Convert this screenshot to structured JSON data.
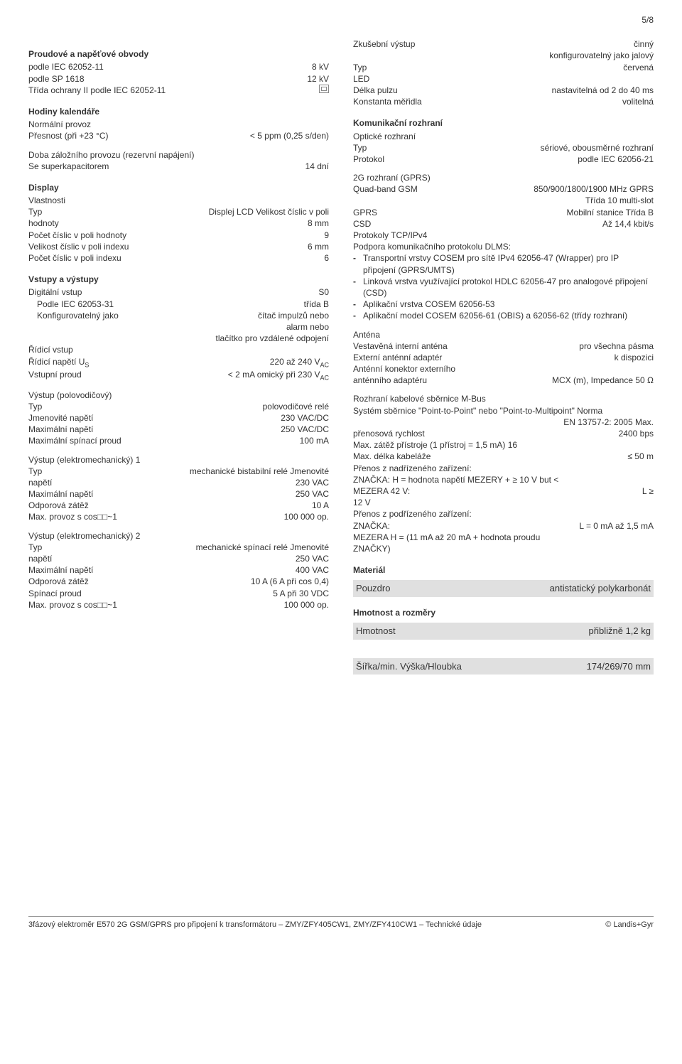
{
  "page_num": "5/8",
  "left": {
    "sect1_title": "Proudové a napěťové obvody",
    "r1": {
      "lab": "podle IEC 62052-11",
      "val": "8 kV"
    },
    "r2": {
      "lab": "podle SP 1618",
      "val": "12 kV"
    },
    "r3_lab": "Třída ochrany II podle IEC 62052-11",
    "sect2_title": "Hodiny kalendáře",
    "r4_lab": "Normální provoz",
    "r5": {
      "lab": "Přesnost (při +23 °C)",
      "val": "< 5 ppm (0,25 s/den)"
    },
    "r6_lab": "Doba záložního provozu (rezervní napájení)",
    "r7": {
      "lab": "Se superkapacitorem",
      "val": "14 dní"
    },
    "sect3_title": "Display",
    "r8_lab": "Vlastnosti",
    "r9": {
      "lab": "Typ",
      "val": "Displej LCD Velikost číslic v poli"
    },
    "r10": {
      "lab": "hodnoty",
      "val": "8 mm"
    },
    "r11": {
      "lab": "Počet číslic v poli hodnoty",
      "val": "9"
    },
    "r12": {
      "lab": "Velikost číslic v poli indexu",
      "val": "6 mm"
    },
    "r13": {
      "lab": "Počet číslic v poli indexu",
      "val": "6"
    },
    "sect4_title": "Vstupy a výstupy",
    "r14": {
      "lab": "Digitální vstup",
      "val": "S0"
    },
    "r15": {
      "lab": "Podle IEC 62053-31",
      "val": "třída B"
    },
    "r16": {
      "lab": "Konfigurovatelný jako",
      "val": "čítač impulzů nebo"
    },
    "r16b": "alarm nebo",
    "r16c": "tlačítko pro vzdálené odpojení",
    "r17_lab": "Řídicí vstup",
    "r18_lab": "Řídicí napětí U",
    "r18_sub": "S",
    "r18_val": "220 až 240 V",
    "r18_val_sub": "AC",
    "r19_lab": "Vstupní proud",
    "r19_val": "< 2 mA omický při 230 V",
    "r19_val_sub": "AC",
    "r20_lab": "Výstup (polovodičový)",
    "r21": {
      "lab": "Typ",
      "val": "polovodičové relé"
    },
    "r22": {
      "lab": "Jmenovité napětí",
      "val": "230 VAC/DC"
    },
    "r23": {
      "lab": "Maximální napětí",
      "val": "250 VAC/DC"
    },
    "r24": {
      "lab": "Maximální spínací proud",
      "val": "100 mA"
    },
    "r25_lab": "Výstup (elektromechanický) 1",
    "r26": {
      "lab": "Typ",
      "val": "mechanické bistabilní relé Jmenovité"
    },
    "r27": {
      "lab": "napětí",
      "val": "230 VAC"
    },
    "r28": {
      "lab": "Maximální napětí",
      "val": "250 VAC"
    },
    "r29": {
      "lab": "Odporová zátěž",
      "val": "10 A"
    },
    "r30": {
      "lab": "Max. provoz s cos□□~1",
      "val": "100 000 op."
    },
    "r31_lab": "Výstup (elektromechanický) 2",
    "r32": {
      "lab": "Typ",
      "val": "mechanické spínací relé Jmenovité"
    },
    "r33": {
      "lab": "napětí",
      "val": "250 VAC"
    },
    "r34": {
      "lab": "Maximální napětí",
      "val": "400    VAC"
    },
    "r35": {
      "lab": "Odporová zátěž",
      "val": "10 A   (6 A   při   cos    0,4)"
    },
    "r36": {
      "lab": "Spínací proud",
      "val": "5 A   při   30 VDC"
    },
    "r37": {
      "lab": "Max. provoz s cos□□~1",
      "val": "100 000 op."
    }
  },
  "right": {
    "r1": {
      "lab": "Zkušební výstup",
      "val": "činný"
    },
    "r1b": "konfigurovatelný jako jalový",
    "r2": {
      "lab": "Typ",
      "val": "červená"
    },
    "r2b": "LED",
    "r3": {
      "lab": "Délka pulzu",
      "val": "nastavitelná od 2 do 40 ms"
    },
    "r4": {
      "lab": "Konstanta měřidla",
      "val": "volitelná"
    },
    "sect1_title": "Komunikační rozhraní",
    "r5_lab": "Optické rozhraní",
    "r6": {
      "lab": "Typ",
      "val": "sériové, obousměrné rozhraní"
    },
    "r7": {
      "lab": "Protokol",
      "val": "podle IEC 62056-21"
    },
    "r8_lab": "2G rozhraní (GPRS)",
    "r9": {
      "lab": "Quad-band GSM",
      "val": "850/900/1800/1900 MHz GPRS"
    },
    "r9b": "Třída 10 multi-slot",
    "r10": {
      "lab": "GPRS",
      "val": "Mobilní stanice Třída B"
    },
    "r11": {
      "lab": "CSD",
      "val": "Až 14,4 kbit/s"
    },
    "r12_lab": "Protokoly TCP/IPv4",
    "r13_lab": "Podpora komunikačního protokolu DLMS:",
    "b1": "Transportní vrstvy COSEM pro sítě IPv4 62056-47 (Wrapper) pro IP připojení (GPRS/UMTS)",
    "b2": "Linková vrstva využívající protokol HDLC 62056-47 pro analogové připojení (CSD)",
    "b3": "Aplikační vrstva COSEM 62056-53",
    "b4": "Aplikační model COSEM 62056-61  (OBIS) a 62056-62 (třídy rozhraní)",
    "r14_lab": "Anténa",
    "r15": {
      "lab": "Vestavěná interní anténa",
      "val": "pro všechna pásma"
    },
    "r16": {
      "lab": "Externí anténní adaptér",
      "val": "k dispozici"
    },
    "r17_lab": "Anténní konektor externího",
    "r18": {
      "lab": "anténního adaptéru",
      "val": "MCX (m), Impedance 50 Ω"
    },
    "r19_lab": "Rozhraní kabelové sběrnice M-Bus",
    "r20_lab": "Systém sběrnice \"Point-to-Point\" nebo \"Point-to-Multipoint\" Norma",
    "r20b": "EN 13757-2: 2005 Max.",
    "r21": {
      "lab": "přenosová rychlost",
      "val": "2400 bps"
    },
    "r22_lab": "Max. zátěž přístroje (1 přístroj = 1,5 mA) 16",
    "r23": {
      "lab": "Max. délka kabeláže",
      "val": "≤ 50 m"
    },
    "r24_lab": "Přenos z nadřízeného zařízení:",
    "r25_lab": "ZNAČKA:       H = hodnota napětí MEZERY + ≥ 10 V but <",
    "r26": {
      "lab": "MEZERA 42 V:",
      "val": "L ≥"
    },
    "r27_lab": "12 V",
    "r28_lab": "Přenos z podřízeného zařízení:",
    "r29": {
      "lab": "ZNAČKA:",
      "val": "L = 0 mA až 1,5 mA"
    },
    "r30_lab": "MEZERA        H = (11 mA až 20 mA + hodnota proudu",
    "r31_lab": "ZNAČKY)",
    "sect2_title": "Materiál",
    "band1": {
      "lab": "Pouzdro",
      "val": "antistatický polykarbonát"
    },
    "sect3_title": "Hmotnost a rozměry",
    "band2": {
      "lab": "Hmotnost",
      "val": "přibližně 1,2 kg"
    },
    "band3": {
      "lab": "Šířka/min. Výška/Hloubka",
      "val": "174/269/70 mm"
    }
  },
  "footer": {
    "left": "3fázový elektroměr E570 2G GSM/GPRS pro připojení k transformátoru – ZMY/ZFY405CW1, ZMY/ZFY410CW1 – Technické údaje",
    "right": "© Landis+Gyr"
  }
}
